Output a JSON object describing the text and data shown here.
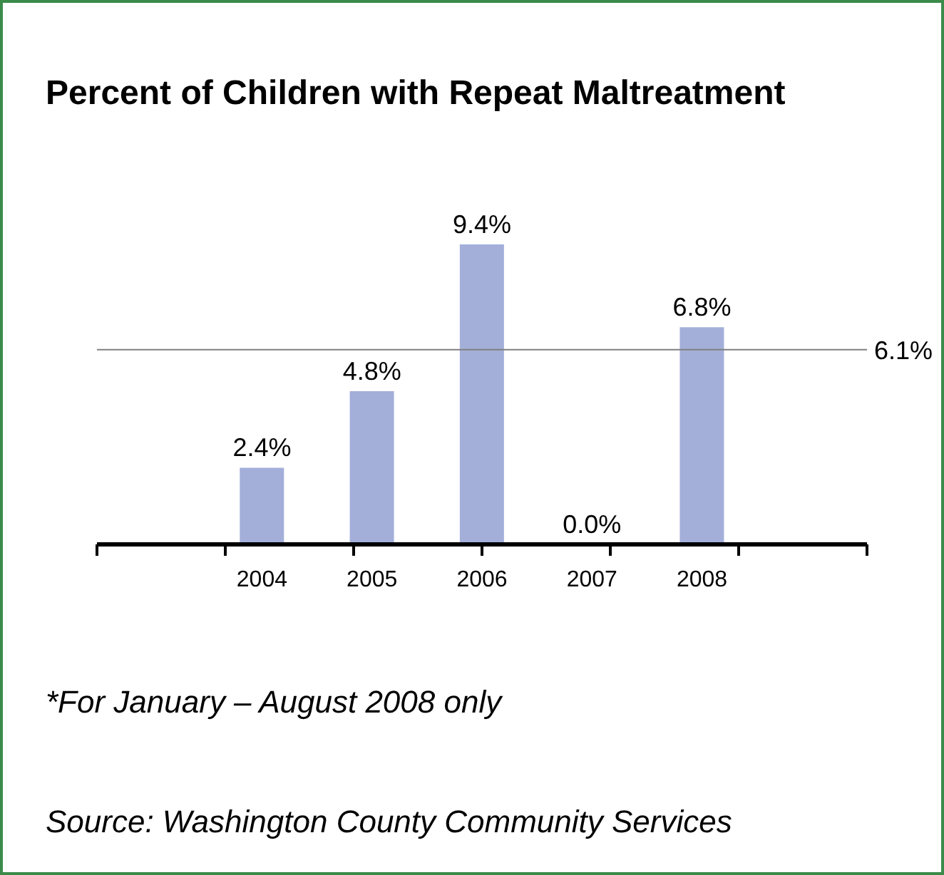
{
  "chart_data": {
    "type": "bar",
    "title": "Percent of Children with Repeat Maltreatment",
    "categories": [
      null,
      "2004",
      "2005",
      "2006",
      "2007",
      "2008",
      null
    ],
    "values": [
      null,
      2.4,
      4.8,
      9.4,
      0.0,
      6.8,
      null
    ],
    "value_labels": [
      null,
      "2.4%",
      "4.8%",
      "9.4%",
      "0.0%",
      "6.8%",
      null
    ],
    "color": "#a3afd9",
    "ref_lines": [
      {
        "axis": "y",
        "value": 6.1,
        "label": "6.1%",
        "color": "#808080"
      }
    ],
    "annotations": [
      "*For January – August 2008 only",
      "Source: Washington County Community Services"
    ]
  }
}
